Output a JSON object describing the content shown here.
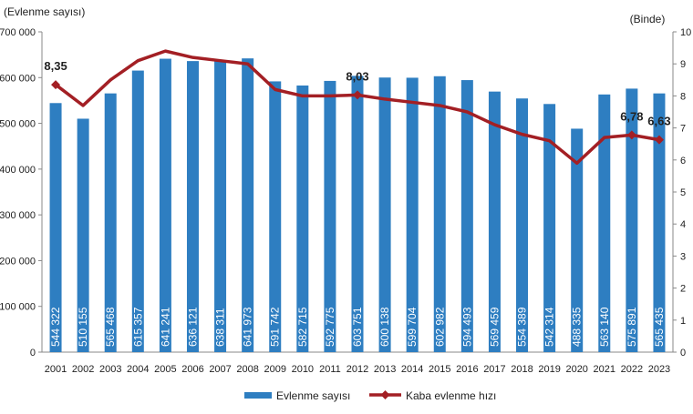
{
  "chart_data": {
    "type": "bar+line",
    "left_axis_label": "(Evlenme sayısı)",
    "right_axis_label": "(Binde)",
    "left_ylim": [
      0,
      700000
    ],
    "right_ylim": [
      0,
      10
    ],
    "left_ticks": [
      "700 000",
      "600 000",
      "500 000",
      "400 000",
      "300 000",
      "200 000",
      "100 000",
      "0"
    ],
    "left_tick_values": [
      700000,
      600000,
      500000,
      400000,
      300000,
      200000,
      100000,
      0
    ],
    "right_ticks": [
      "10",
      "9",
      "8",
      "7",
      "6",
      "5",
      "4",
      "3",
      "2",
      "1",
      "0"
    ],
    "right_tick_values": [
      10,
      9,
      8,
      7,
      6,
      5,
      4,
      3,
      2,
      1,
      0
    ],
    "categories": [
      "2001",
      "2002",
      "2003",
      "2004",
      "2005",
      "2006",
      "2007",
      "2008",
      "2009",
      "2010",
      "2011",
      "2012",
      "2013",
      "2014",
      "2015",
      "2016",
      "2017",
      "2018",
      "2019",
      "2020",
      "2021",
      "2022",
      "2023"
    ],
    "grid": false,
    "legend_placement": "bottom",
    "series": [
      {
        "name": "Evlenme sayısı",
        "type": "bar",
        "axis": "left",
        "color": "#2e7ec1",
        "values": [
          544322,
          510155,
          565468,
          615357,
          641241,
          636121,
          638311,
          641973,
          591742,
          582715,
          592775,
          603751,
          600138,
          599704,
          602982,
          594493,
          569459,
          554389,
          542314,
          488335,
          563140,
          575891,
          565435
        ],
        "labels": [
          "544 322",
          "510 155",
          "565 468",
          "615 357",
          "641 241",
          "636 121",
          "638 311",
          "641 973",
          "591 742",
          "582 715",
          "592 775",
          "603 751",
          "600 138",
          "599 704",
          "602 982",
          "594 493",
          "569 459",
          "554 389",
          "542 314",
          "488 335",
          "563 140",
          "575 891",
          "565 435"
        ]
      },
      {
        "name": "Kaba evlenme hızı",
        "type": "line",
        "axis": "right",
        "color": "#a31f24",
        "values": [
          8.35,
          7.7,
          8.5,
          9.1,
          9.4,
          9.2,
          9.1,
          9.0,
          8.2,
          8.0,
          8.0,
          8.03,
          7.9,
          7.8,
          7.7,
          7.5,
          7.1,
          6.8,
          6.6,
          5.9,
          6.7,
          6.78,
          6.63
        ],
        "labeled_points": [
          {
            "category": "2001",
            "label": "8,35"
          },
          {
            "category": "2012",
            "label": "8,03"
          },
          {
            "category": "2022",
            "label": "6,78"
          },
          {
            "category": "2023",
            "label": "6,63"
          }
        ]
      }
    ]
  }
}
